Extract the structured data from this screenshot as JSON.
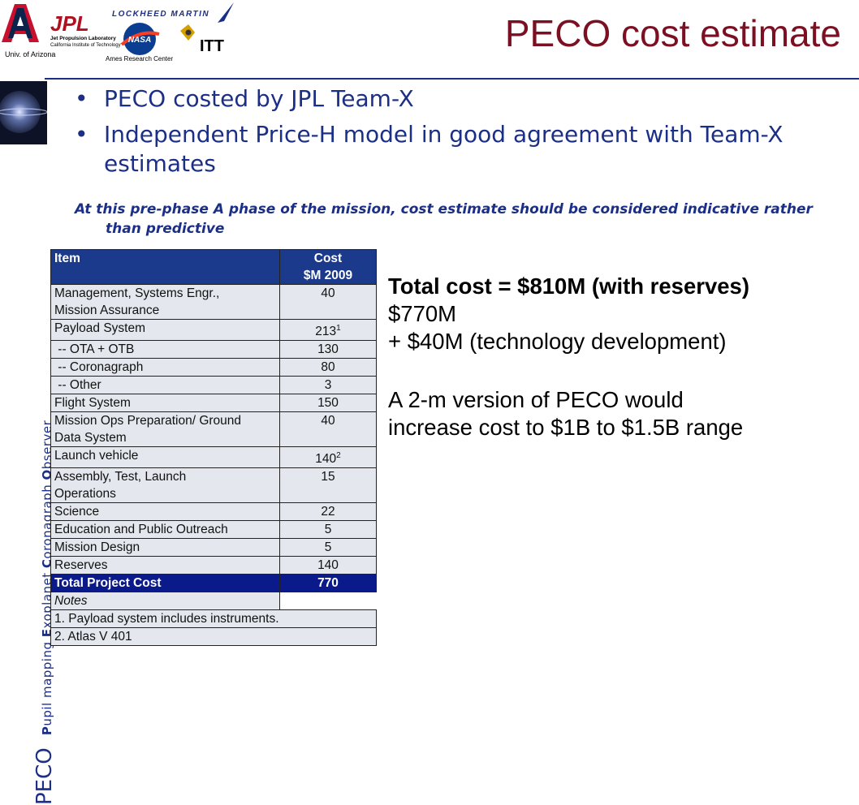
{
  "logos": {
    "univ_arizona_caption": "Univ. of Arizona",
    "jpl_name": "JPL",
    "jpl_sub1": "Jet Propulsion Laboratory",
    "jpl_sub2": "California Institute of Technology",
    "lockheed": "LOCKHEED MARTIN",
    "nasa": "NASA",
    "ames_caption": "Ames Research Center",
    "itt": "ITT"
  },
  "title": "PECO cost estimate",
  "sidebar": {
    "acronym": "PECO",
    "words": [
      {
        "initial": "P",
        "rest": "upil mapping "
      },
      {
        "initial": "E",
        "rest": "xoplanet "
      },
      {
        "initial": "C",
        "rest": "oronagraph "
      },
      {
        "initial": "O",
        "rest": "bserver"
      }
    ]
  },
  "bullets": [
    "PECO costed by JPL Team-X",
    "Independent Price-H model in good agreement with Team-X estimates"
  ],
  "bullet_glyph": "•",
  "note": "At this pre-phase A phase of the mission, cost estimate should be considered indicative rather than predictive",
  "table": {
    "head_item": "Item",
    "head_cost_1": "Cost",
    "head_cost_2": "$M 2009",
    "rows": [
      {
        "item_lines": [
          "Management, Systems Engr.,",
          "Mission Assurance"
        ],
        "cost": "40",
        "sup": ""
      },
      {
        "item_lines": [
          "Payload System"
        ],
        "cost": "213",
        "sup": "1"
      },
      {
        "item_lines": [
          " -- OTA + OTB"
        ],
        "cost": "130",
        "sup": ""
      },
      {
        "item_lines": [
          " -- Coronagraph"
        ],
        "cost": "80",
        "sup": ""
      },
      {
        "item_lines": [
          " -- Other"
        ],
        "cost": "3",
        "sup": ""
      },
      {
        "item_lines": [
          "Flight System"
        ],
        "cost": "150",
        "sup": ""
      },
      {
        "item_lines": [
          "Mission Ops Preparation/ Ground",
          "Data System"
        ],
        "cost": "40",
        "sup": ""
      },
      {
        "item_lines": [
          "Launch vehicle"
        ],
        "cost": "140",
        "sup": "2"
      },
      {
        "item_lines": [
          "Assembly, Test, Launch",
          "Operations"
        ],
        "cost": "15",
        "sup": ""
      },
      {
        "item_lines": [
          "Science"
        ],
        "cost": "22",
        "sup": ""
      },
      {
        "item_lines": [
          "Education and Public Outreach"
        ],
        "cost": "5",
        "sup": ""
      },
      {
        "item_lines": [
          "Mission Design"
        ],
        "cost": "5",
        "sup": ""
      },
      {
        "item_lines": [
          "Reserves"
        ],
        "cost": "140",
        "sup": ""
      }
    ],
    "total_item": "Total Project Cost",
    "total_cost": "770",
    "notes_label": "Notes",
    "notes": [
      "1. Payload system includes instruments.",
      "2. Atlas V 401"
    ]
  },
  "right_text": {
    "line1": "Total cost = $810M (with reserves)",
    "line2": "$770M",
    "line3": "+ $40M (technology development)",
    "line4": "A 2-m version of PECO would",
    "line5": "increase cost to $1B to $1.5B range"
  },
  "colors": {
    "title": "#7b1022",
    "navy": "#1c2f86",
    "table_head": "#1c3a8c",
    "table_total": "#0b1a8a",
    "table_body": "#e4e8ee"
  }
}
